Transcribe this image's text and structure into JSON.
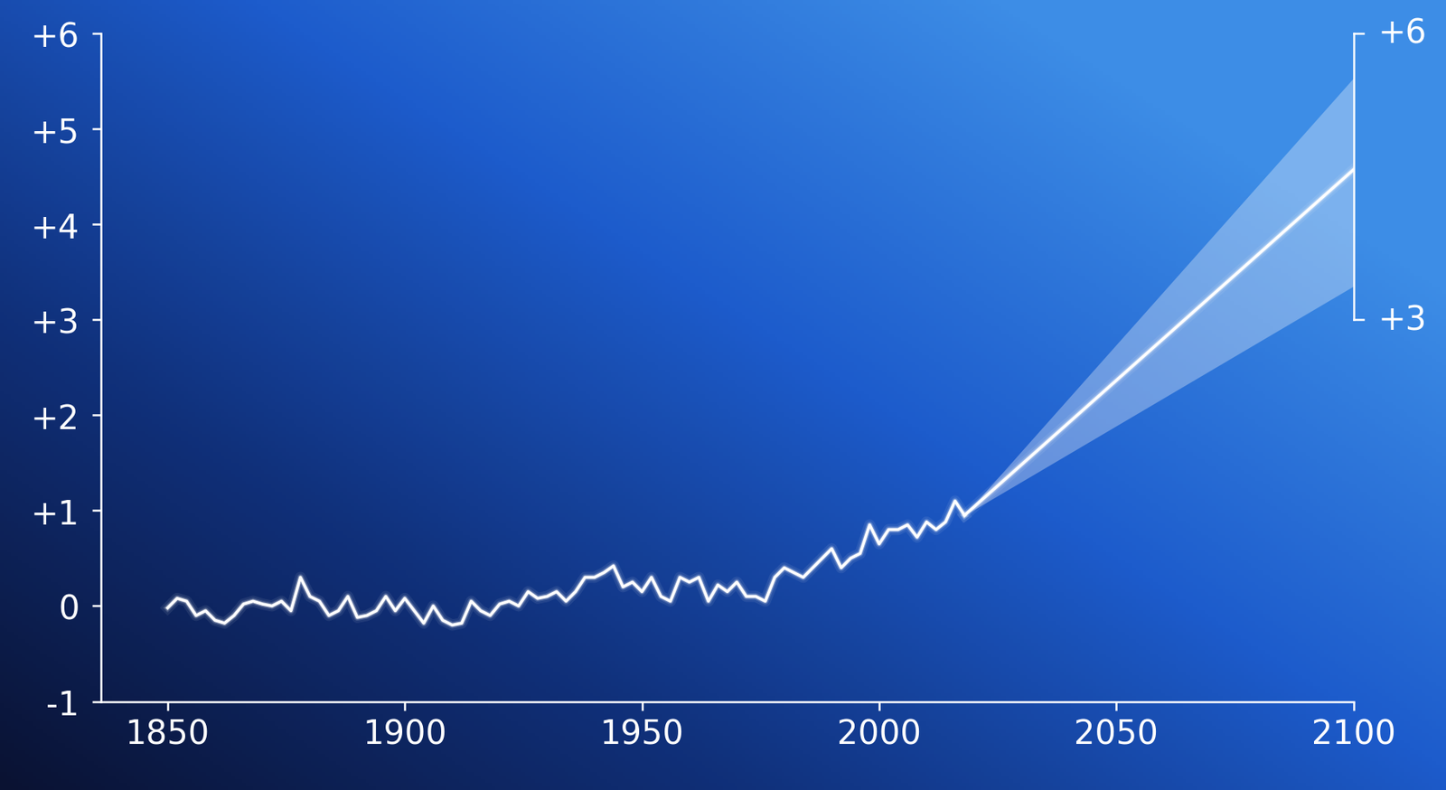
{
  "chart_data": {
    "type": "line",
    "xlim": [
      1836,
      2100
    ],
    "xticks": [
      1850,
      1900,
      1950,
      2000,
      2050,
      2100
    ],
    "ylim": [
      -1,
      6
    ],
    "yticks": [
      {
        "value": 6,
        "label": "+6"
      },
      {
        "value": 5,
        "label": "+5"
      },
      {
        "value": 4,
        "label": "+4"
      },
      {
        "value": 3,
        "label": "+3"
      },
      {
        "value": 2,
        "label": "+2"
      },
      {
        "value": 1,
        "label": "+1"
      },
      0,
      -1
    ],
    "color": "#ffffff",
    "series": [
      {
        "type": "line",
        "x": [
          1850,
          1852,
          1854,
          1856,
          1858,
          1860,
          1862,
          1864,
          1866,
          1868,
          1870,
          1872,
          1874,
          1876,
          1878,
          1880,
          1882,
          1884,
          1886,
          1888,
          1890,
          1892,
          1894,
          1896,
          1898,
          1900,
          1902,
          1904,
          1906,
          1908,
          1910,
          1912,
          1914,
          1916,
          1918,
          1920,
          1922,
          1924,
          1926,
          1928,
          1930,
          1932,
          1934,
          1936,
          1938,
          1940,
          1942,
          1944,
          1946,
          1948,
          1950,
          1952,
          1954,
          1956,
          1958,
          1960,
          1962,
          1964,
          1966,
          1968,
          1970,
          1972,
          1974,
          1976,
          1978,
          1980,
          1982,
          1984,
          1986,
          1988,
          1990,
          1992,
          1994,
          1996,
          1998,
          2000,
          2002,
          2004,
          2006,
          2008,
          2010,
          2012,
          2014,
          2016,
          2018
        ],
        "values": [
          -0.02,
          0.08,
          0.05,
          -0.1,
          -0.05,
          -0.15,
          -0.18,
          -0.1,
          0.02,
          0.05,
          0.02,
          0.0,
          0.05,
          -0.05,
          0.3,
          0.1,
          0.05,
          -0.1,
          -0.05,
          0.1,
          -0.12,
          -0.1,
          -0.05,
          0.1,
          -0.05,
          0.08,
          -0.05,
          -0.18,
          0.0,
          -0.15,
          -0.2,
          -0.18,
          0.05,
          -0.05,
          -0.1,
          0.02,
          0.05,
          0.0,
          0.15,
          0.08,
          0.1,
          0.15,
          0.05,
          0.15,
          0.3,
          0.3,
          0.35,
          0.42,
          0.2,
          0.25,
          0.15,
          0.3,
          0.1,
          0.05,
          0.3,
          0.25,
          0.3,
          0.05,
          0.22,
          0.15,
          0.25,
          0.1,
          0.1,
          0.05,
          0.3,
          0.4,
          0.35,
          0.3,
          0.4,
          0.5,
          0.6,
          0.4,
          0.5,
          0.55,
          0.85,
          0.65,
          0.8,
          0.8,
          0.85,
          0.72,
          0.88,
          0.8,
          0.88,
          1.1,
          0.95
        ]
      },
      {
        "type": "line",
        "x": [
          2018,
          2100
        ],
        "values": [
          0.95,
          4.57
        ]
      }
    ],
    "band": {
      "x": [
        2018,
        2100
      ],
      "lower": [
        0.95,
        3.35
      ],
      "upper": [
        0.95,
        5.53
      ]
    },
    "bracket": {
      "low": {
        "value": 3,
        "label": "+3"
      },
      "high": {
        "value": 6,
        "label": "+6"
      }
    }
  }
}
